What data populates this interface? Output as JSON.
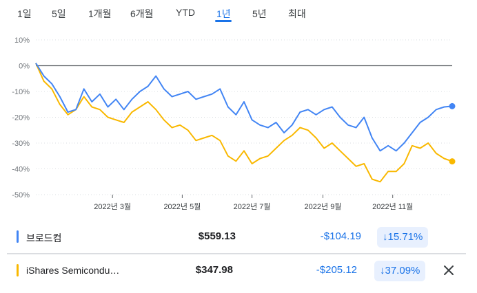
{
  "tabs": [
    {
      "label": "1일"
    },
    {
      "label": "5일"
    },
    {
      "label": "1개월"
    },
    {
      "label": "6개월"
    },
    {
      "label": "YTD"
    },
    {
      "label": "1년",
      "active": true
    },
    {
      "label": "5년"
    },
    {
      "label": "최대"
    }
  ],
  "colors": {
    "series1": "#4285f4",
    "series2": "#f9b800",
    "accent": "#1a73e8",
    "zero_line": "#5f6368",
    "grid": "#dadce0"
  },
  "chart_data": {
    "type": "line",
    "ylim": [
      -50,
      10
    ],
    "yticks": [
      10,
      0,
      -10,
      -20,
      -30,
      -40,
      -50
    ],
    "ytick_labels": [
      "10%",
      "0%",
      "-10%",
      "-20%",
      "-30%",
      "-40%",
      "-50%"
    ],
    "xticks": [
      "2022-03-01",
      "2022-05-01",
      "2022-07-01",
      "2022-09-01",
      "2022-11-01"
    ],
    "xtick_labels": [
      "2022년 3월",
      "2022년 5월",
      "2022년 7월",
      "2022년 9월",
      "2022년 11월"
    ],
    "xlim": [
      "2021-12-24",
      "2022-12-23"
    ],
    "series": [
      {
        "name": "브로드컴",
        "color": "#4285f4",
        "x": [
          "2021-12-24",
          "2021-12-31",
          "2022-01-07",
          "2022-01-14",
          "2022-01-21",
          "2022-01-28",
          "2022-02-04",
          "2022-02-11",
          "2022-02-18",
          "2022-02-25",
          "2022-03-04",
          "2022-03-11",
          "2022-03-18",
          "2022-03-25",
          "2022-04-01",
          "2022-04-08",
          "2022-04-15",
          "2022-04-22",
          "2022-04-29",
          "2022-05-06",
          "2022-05-13",
          "2022-05-20",
          "2022-05-27",
          "2022-06-03",
          "2022-06-10",
          "2022-06-17",
          "2022-06-24",
          "2022-07-01",
          "2022-07-08",
          "2022-07-15",
          "2022-07-22",
          "2022-07-29",
          "2022-08-05",
          "2022-08-12",
          "2022-08-19",
          "2022-08-26",
          "2022-09-02",
          "2022-09-09",
          "2022-09-16",
          "2022-09-23",
          "2022-09-30",
          "2022-10-07",
          "2022-10-14",
          "2022-10-21",
          "2022-10-28",
          "2022-11-04",
          "2022-11-11",
          "2022-11-18",
          "2022-11-25",
          "2022-12-02",
          "2022-12-09",
          "2022-12-16",
          "2022-12-23"
        ],
        "values": [
          1,
          -4,
          -7,
          -12,
          -18,
          -17,
          -9,
          -14,
          -11,
          -16,
          -13,
          -17,
          -13,
          -10,
          -8,
          -4,
          -9,
          -12,
          -11,
          -10,
          -13,
          -12,
          -11,
          -9,
          -16,
          -19,
          -14,
          -21,
          -23,
          -24,
          -22,
          -26,
          -23,
          -18,
          -17,
          -19,
          -17,
          -16,
          -20,
          -23,
          -24,
          -20,
          -28,
          -33,
          -31,
          -33,
          -30,
          -26,
          -22,
          -20,
          -17,
          -16,
          -15.7
        ]
      },
      {
        "name": "iShares Semicondu…",
        "color": "#f9b800",
        "x": [
          "2021-12-24",
          "2021-12-31",
          "2022-01-07",
          "2022-01-14",
          "2022-01-21",
          "2022-01-28",
          "2022-02-04",
          "2022-02-11",
          "2022-02-18",
          "2022-02-25",
          "2022-03-04",
          "2022-03-11",
          "2022-03-18",
          "2022-03-25",
          "2022-04-01",
          "2022-04-08",
          "2022-04-15",
          "2022-04-22",
          "2022-04-29",
          "2022-05-06",
          "2022-05-13",
          "2022-05-20",
          "2022-05-27",
          "2022-06-03",
          "2022-06-10",
          "2022-06-17",
          "2022-06-24",
          "2022-07-01",
          "2022-07-08",
          "2022-07-15",
          "2022-07-22",
          "2022-07-29",
          "2022-08-05",
          "2022-08-12",
          "2022-08-19",
          "2022-08-26",
          "2022-09-02",
          "2022-09-09",
          "2022-09-16",
          "2022-09-23",
          "2022-09-30",
          "2022-10-07",
          "2022-10-14",
          "2022-10-21",
          "2022-10-28",
          "2022-11-04",
          "2022-11-11",
          "2022-11-18",
          "2022-11-25",
          "2022-12-02",
          "2022-12-09",
          "2022-12-16",
          "2022-12-23"
        ],
        "values": [
          1,
          -6,
          -9,
          -15,
          -19,
          -17,
          -12,
          -16,
          -17,
          -20,
          -21,
          -22,
          -18,
          -16,
          -14,
          -17,
          -21,
          -24,
          -23,
          -25,
          -29,
          -28,
          -27,
          -29,
          -35,
          -37,
          -33,
          -38,
          -36,
          -35,
          -32,
          -29,
          -27,
          -24,
          -25,
          -28,
          -32,
          -30,
          -33,
          -36,
          -39,
          -38,
          -44,
          -45,
          -41,
          -41,
          -38,
          -31,
          -32,
          -30,
          -34,
          -36,
          -37.1
        ]
      }
    ]
  },
  "legend_rows": [
    {
      "name": "브로드컴",
      "price": "$559.13",
      "change": "-$104.19",
      "pct": "15.71%",
      "arrow": "↓"
    },
    {
      "name": "iShares Semicondu…",
      "price": "$347.98",
      "change": "-$205.12",
      "pct": "37.09%",
      "arrow": "↓"
    }
  ]
}
